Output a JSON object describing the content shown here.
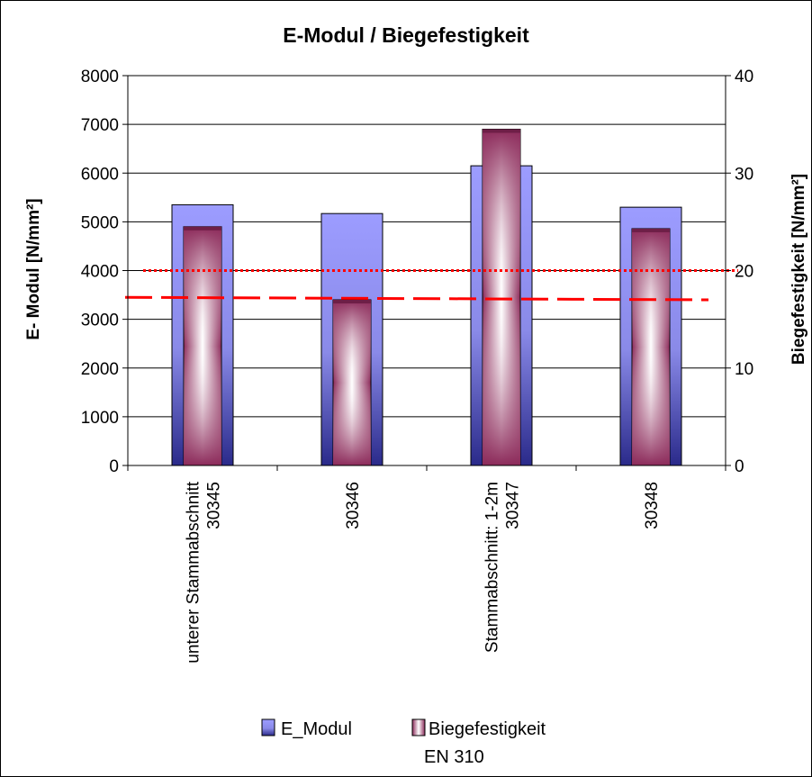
{
  "chart_data": {
    "type": "bar",
    "title": "E-Modul / Biegefestigkeit",
    "ylabel": "E- Modul [N/mm²]",
    "y2label": "Biegefestigkeit [N/mm²]",
    "ylim": [
      0,
      8000
    ],
    "y2lim": [
      0,
      40
    ],
    "yticks": [
      0,
      1000,
      2000,
      3000,
      4000,
      5000,
      6000,
      7000,
      8000
    ],
    "y2ticks": [
      0,
      10,
      20,
      30,
      40
    ],
    "grid": true,
    "legend_position": "bottom",
    "categories": [
      [
        "unterer Stammabschnitt",
        "30345"
      ],
      [
        "30346"
      ],
      [
        "Stammabschnitt:  1-2m",
        "30347"
      ],
      [
        "30348"
      ]
    ],
    "series": [
      {
        "name": "E_Modul",
        "axis": "left",
        "values": [
          5350,
          5170,
          6150,
          5300
        ],
        "color": "#9999ff"
      },
      {
        "name": "Biegefestigkeit EN  310",
        "axis": "right",
        "values": [
          24.5,
          17.0,
          34.5,
          24.3
        ],
        "color": "#993366"
      }
    ],
    "reference_lines": [
      {
        "style": "dotted",
        "axis": "right",
        "value": 20.0,
        "color": "#ff0000"
      },
      {
        "style": "dashed",
        "axis": "left",
        "value_start": 3450,
        "value_end": 3400,
        "color": "#ff0000"
      }
    ],
    "legend": {
      "items": [
        {
          "label": "E_Modul"
        },
        {
          "label_lines": [
            "Biegefestigkeit",
            "EN  310"
          ]
        }
      ]
    }
  }
}
